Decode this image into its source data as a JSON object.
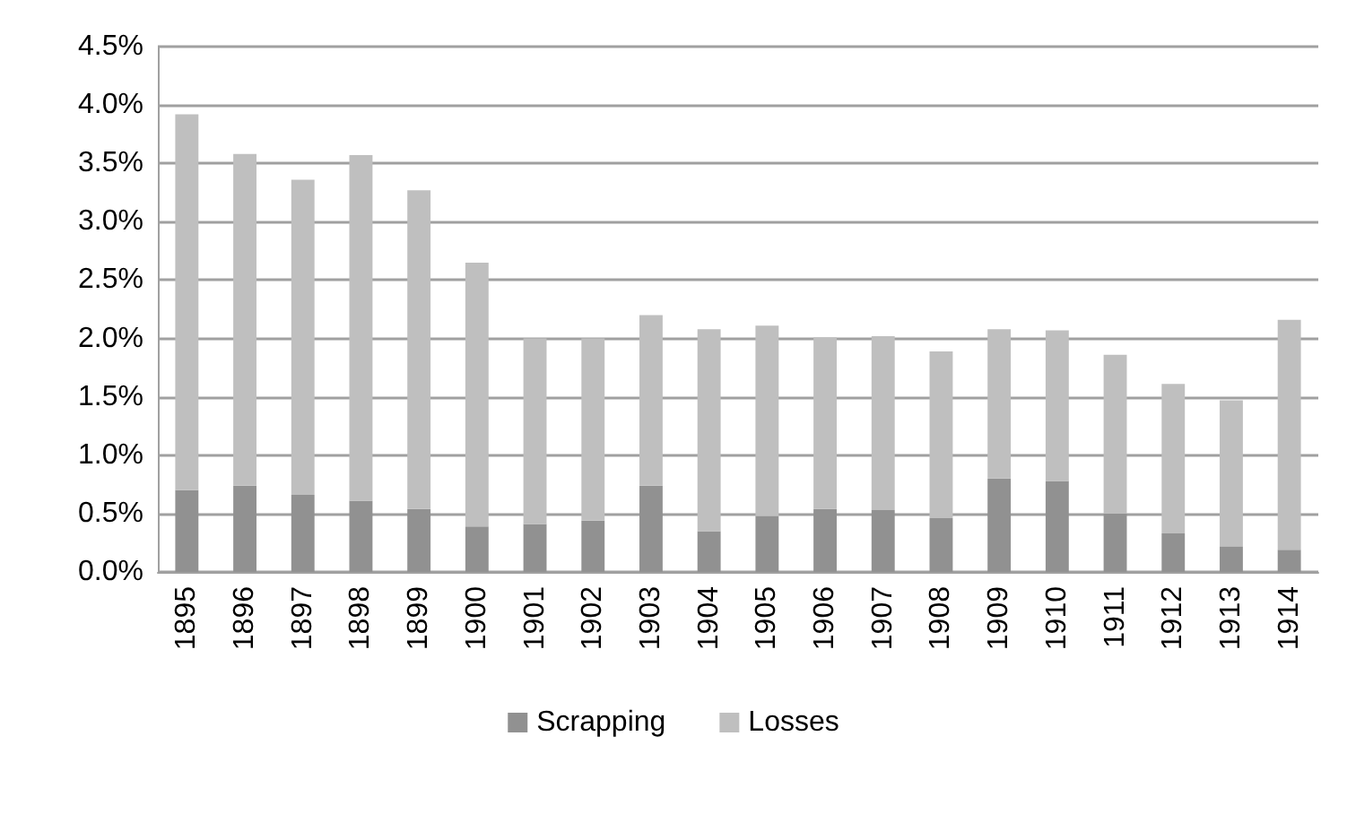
{
  "chart_data": {
    "type": "bar",
    "stacked": true,
    "categories": [
      "1895",
      "1896",
      "1897",
      "1898",
      "1899",
      "1900",
      "1901",
      "1902",
      "1903",
      "1904",
      "1905",
      "1906",
      "1907",
      "1908",
      "1909",
      "1910",
      "1911",
      "1912",
      "1913",
      "1914"
    ],
    "series": [
      {
        "name": "Scrapping",
        "color": "#919191",
        "values": [
          0.7,
          0.74,
          0.66,
          0.61,
          0.54,
          0.39,
          0.41,
          0.44,
          0.74,
          0.35,
          0.48,
          0.54,
          0.53,
          0.46,
          0.8,
          0.78,
          0.5,
          0.33,
          0.22,
          0.19
        ]
      },
      {
        "name": "Losses",
        "color": "#bfbfbf",
        "values": [
          3.22,
          2.84,
          2.7,
          2.96,
          2.73,
          2.26,
          1.59,
          1.56,
          1.46,
          1.73,
          1.63,
          1.47,
          1.49,
          1.43,
          1.28,
          1.29,
          1.36,
          1.28,
          1.25,
          1.97
        ]
      }
    ],
    "ylim": [
      0,
      4.5
    ],
    "yticks": [
      {
        "value": 0,
        "label": "0.0%"
      },
      {
        "value": 0.5,
        "label": "0.5%"
      },
      {
        "value": 1,
        "label": "1.0%"
      },
      {
        "value": 1.5,
        "label": "1.5%"
      },
      {
        "value": 2,
        "label": "2.0%"
      },
      {
        "value": 2.5,
        "label": "2.5%"
      },
      {
        "value": 3,
        "label": "3.0%"
      },
      {
        "value": 3.5,
        "label": "3.5%"
      },
      {
        "value": 4,
        "label": "4.0%"
      },
      {
        "value": 4.5,
        "label": "4.5%"
      }
    ],
    "grid": "y",
    "legend": "bottom"
  }
}
